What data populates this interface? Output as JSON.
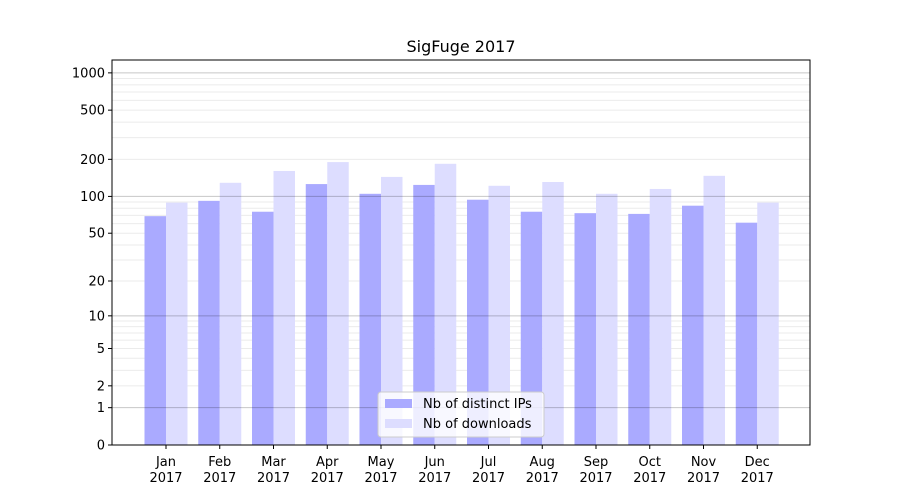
{
  "chart_data": {
    "type": "bar",
    "title": "SigFuge 2017",
    "xlabel": "",
    "ylabel": "",
    "yscale": "log10(1+y)",
    "ylim": [
      0,
      1270
    ],
    "yticks": [
      0,
      1,
      2,
      5,
      10,
      20,
      50,
      100,
      200,
      500,
      1000
    ],
    "grid": true,
    "legend": "bottom-center",
    "categories": [
      "Jan\n2017",
      "Feb\n2017",
      "Mar\n2017",
      "Apr\n2017",
      "May\n2017",
      "Jun\n2017",
      "Jul\n2017",
      "Aug\n2017",
      "Sep\n2017",
      "Oct\n2017",
      "Nov\n2017",
      "Dec\n2017"
    ],
    "series": [
      {
        "name": "Nb of distinct IPs",
        "color": "#aaaaff",
        "values": [
          69,
          92,
          75,
          126,
          105,
          124,
          94,
          75,
          73,
          72,
          84,
          61
        ]
      },
      {
        "name": "Nb of downloads",
        "color": "#ddddff",
        "values": [
          89,
          129,
          161,
          190,
          144,
          184,
          122,
          131,
          105,
          115,
          147,
          89
        ]
      }
    ]
  }
}
